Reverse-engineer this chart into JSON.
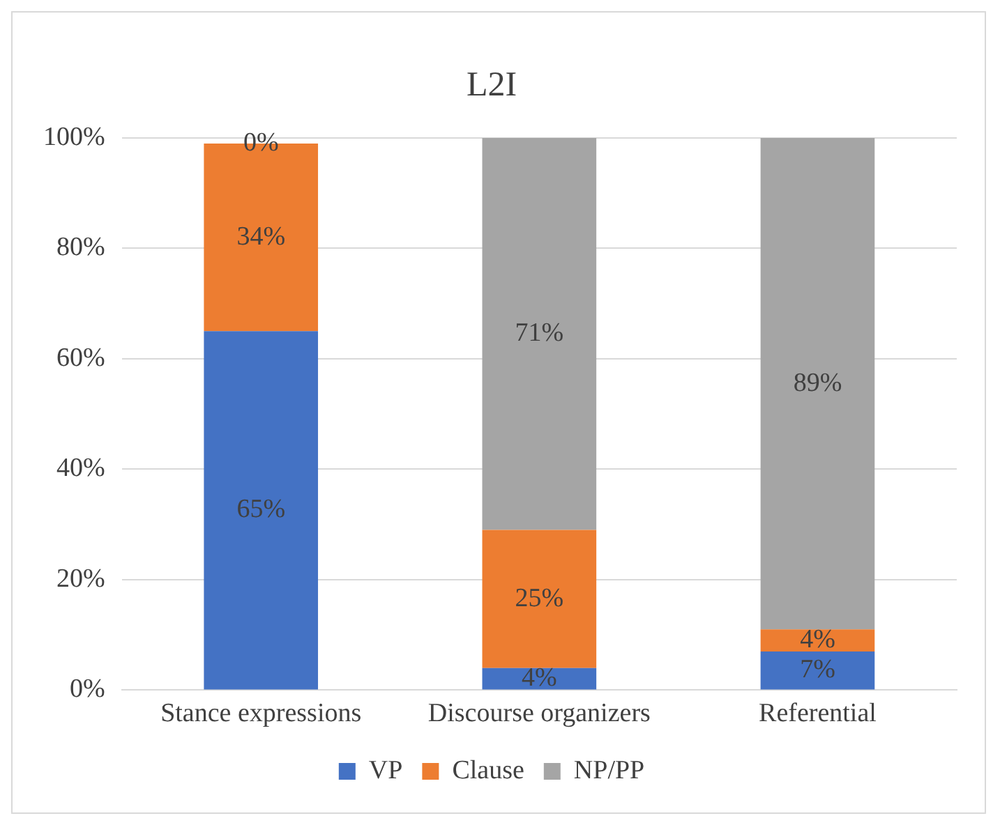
{
  "chart_data": {
    "type": "bar",
    "title": "L2I",
    "stacked": true,
    "categories": [
      "Stance expressions",
      "Discourse organizers",
      "Referential"
    ],
    "series": [
      {
        "name": "VP",
        "color": "#4472c4",
        "values": [
          65,
          4,
          7
        ],
        "value_labels": [
          "65%",
          "4%",
          "7%"
        ]
      },
      {
        "name": "Clause",
        "color": "#ed7d31",
        "values": [
          34,
          25,
          4
        ],
        "value_labels": [
          "34%",
          "25%",
          "4%"
        ]
      },
      {
        "name": "NP/PP",
        "color": "#a5a5a5",
        "values": [
          0,
          71,
          89
        ],
        "value_labels": [
          "0%",
          "71%",
          "89%"
        ]
      }
    ],
    "ylim": [
      0,
      100
    ],
    "yticks": [
      {
        "value": 0,
        "label": "0%"
      },
      {
        "value": 20,
        "label": "20%"
      },
      {
        "value": 40,
        "label": "40%"
      },
      {
        "value": 60,
        "label": "60%"
      },
      {
        "value": 80,
        "label": "80%"
      },
      {
        "value": 100,
        "label": "100%"
      }
    ],
    "grid": "y",
    "legend": "bottom"
  }
}
